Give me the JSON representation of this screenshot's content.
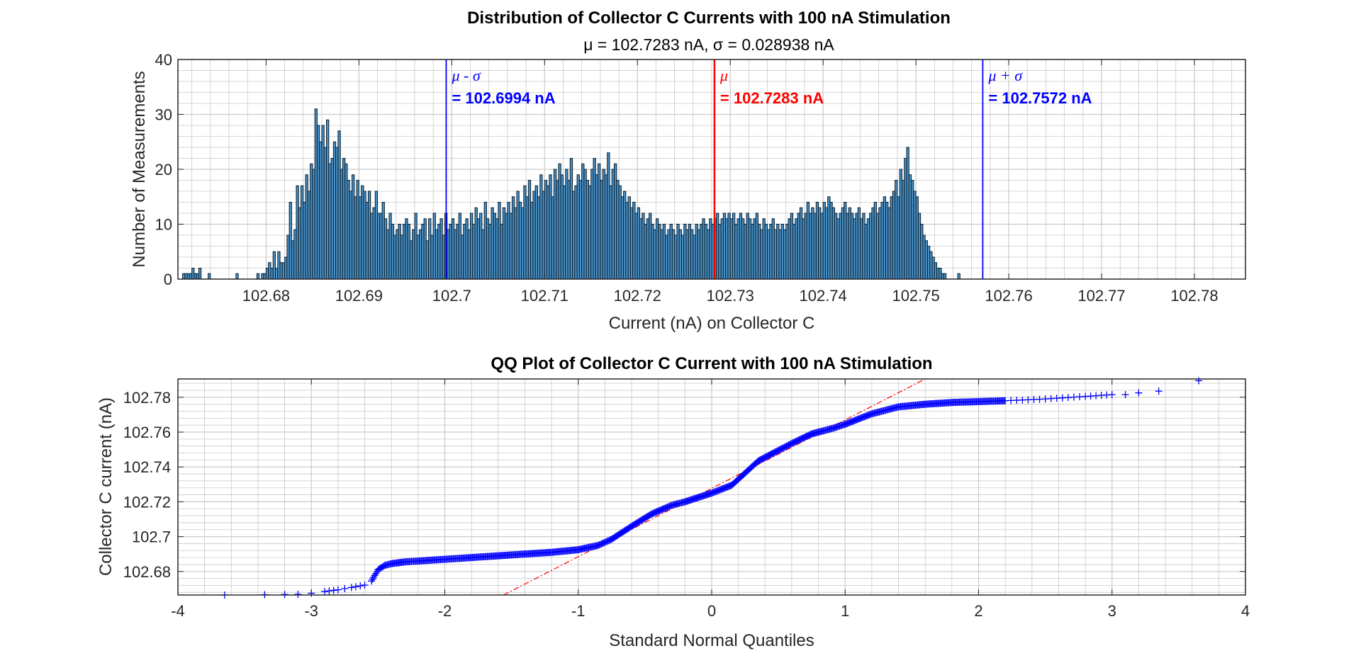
{
  "colors": {
    "bar_fill": "#4a90c4",
    "bar_edge": "#0b1f2e",
    "mean": "#ff0000",
    "sigma": "#0000ff",
    "qq_marker": "#0000ff",
    "ref_line": "#ff0000",
    "grid": "#c9c9c9",
    "axis": "#262626"
  },
  "chart_data": [
    {
      "type": "bar",
      "title": "Distribution of Collector C Currents with 100 nA Stimulation",
      "subtitle": "μ = 102.7283 nA, σ = 0.028938 nA",
      "xlabel": "Current (nA) on Collector C",
      "ylabel": "Number of Measurements",
      "xlim": [
        102.6705,
        102.7855
      ],
      "ylim": [
        0,
        40
      ],
      "xticks": [
        102.68,
        102.69,
        102.7,
        102.71,
        102.72,
        102.73,
        102.74,
        102.75,
        102.76,
        102.77,
        102.78
      ],
      "xtick_labels": [
        "102.68",
        "102.69",
        "102.7",
        "102.71",
        "102.72",
        "102.73",
        "102.74",
        "102.75",
        "102.76",
        "102.77",
        "102.78"
      ],
      "yticks": [
        0,
        10,
        20,
        30,
        40
      ],
      "ytick_labels": [
        "0",
        "10",
        "20",
        "30",
        "40"
      ],
      "grid": true,
      "bin_start": 102.671,
      "bin_width": 0.00025,
      "counts": [
        1,
        1,
        1,
        1,
        2,
        1,
        1,
        2,
        0,
        0,
        0,
        1,
        0,
        0,
        0,
        0,
        0,
        0,
        0,
        0,
        0,
        0,
        0,
        1,
        0,
        0,
        0,
        0,
        0,
        0,
        0,
        0,
        1,
        0,
        1,
        1,
        2,
        3,
        2,
        5,
        2,
        5,
        3,
        3,
        4,
        8,
        14,
        7,
        9,
        17,
        13,
        17,
        14,
        19,
        16,
        21,
        20,
        31,
        28,
        25,
        28,
        24,
        29,
        21,
        22,
        25,
        24,
        27,
        20,
        22,
        21,
        18,
        16,
        19,
        15,
        18,
        15,
        17,
        16,
        14,
        16,
        12,
        13,
        16,
        12,
        12,
        14,
        11,
        9,
        12,
        10,
        8,
        9,
        10,
        8,
        10,
        11,
        10,
        7,
        9,
        12,
        8,
        9,
        10,
        11,
        7,
        11,
        8,
        12,
        9,
        10,
        11,
        8,
        12,
        9,
        10,
        11,
        9,
        10,
        12,
        8,
        10,
        11,
        9,
        12,
        10,
        13,
        11,
        12,
        9,
        14,
        11,
        10,
        13,
        12,
        11,
        14,
        10,
        13,
        12,
        14,
        12,
        15,
        13,
        16,
        14,
        13,
        17,
        15,
        18,
        14,
        16,
        17,
        15,
        19,
        16,
        18,
        17,
        19,
        15,
        20,
        18,
        21,
        19,
        17,
        20,
        18,
        22,
        16,
        17,
        19,
        18,
        21,
        20,
        18,
        17,
        20,
        22,
        19,
        21,
        18,
        20,
        19,
        23,
        17,
        20,
        21,
        18,
        17,
        15,
        16,
        14,
        15,
        13,
        14,
        12,
        13,
        11,
        12,
        10,
        11,
        12,
        10,
        9,
        11,
        10,
        9,
        10,
        8,
        9,
        10,
        9,
        8,
        10,
        9,
        8,
        10,
        9,
        10,
        9,
        8,
        10,
        9,
        10,
        11,
        10,
        9,
        11,
        10,
        11,
        12,
        10,
        11,
        12,
        11,
        12,
        11,
        12,
        10,
        11,
        12,
        11,
        10,
        12,
        11,
        10,
        11,
        12,
        10,
        9,
        11,
        10,
        9,
        10,
        11,
        9,
        10,
        9,
        10,
        9,
        10,
        11,
        12,
        10,
        11,
        12,
        13,
        11,
        12,
        14,
        12,
        13,
        12,
        14,
        13,
        12,
        14,
        13,
        15,
        14,
        13,
        12,
        11,
        12,
        13,
        14,
        12,
        13,
        12,
        11,
        12,
        13,
        11,
        12,
        10,
        11,
        12,
        13,
        14,
        12,
        13,
        14,
        15,
        14,
        13,
        15,
        16,
        18,
        15,
        20,
        18,
        22,
        24,
        19,
        18,
        16,
        15,
        12,
        10,
        8,
        7,
        6,
        5,
        4,
        3,
        2,
        2,
        1,
        1,
        0,
        0,
        0,
        0,
        0,
        1,
        0,
        0,
        0,
        0,
        0,
        0
      ]
    },
    {
      "type": "scatter",
      "title": "QQ Plot of Collector C Current with 100 nA Stimulation",
      "xlabel": "Standard Normal Quantiles",
      "ylabel": "Collector C current (nA)",
      "xlim": [
        -4,
        4
      ],
      "ylim": [
        102.6665,
        102.7905
      ],
      "xticks": [
        -4,
        -3,
        -2,
        -1,
        0,
        1,
        2,
        3,
        4
      ],
      "xtick_labels": [
        "-4",
        "-3",
        "-2",
        "-1",
        "0",
        "1",
        "2",
        "3",
        "4"
      ],
      "yticks": [
        102.68,
        102.7,
        102.72,
        102.74,
        102.76,
        102.78
      ],
      "ytick_labels": [
        "102.68",
        "102.7",
        "102.72",
        "102.74",
        "102.76",
        "102.78"
      ],
      "grid": true,
      "quantile_curve": {
        "x": [
          -3.65,
          -3.35,
          -3.2,
          -3.1,
          -3.0,
          -2.9,
          -2.8,
          -2.7,
          -2.6,
          -2.55,
          -2.5,
          -2.45,
          -2.4,
          -2.3,
          -2.2,
          -2.0,
          -1.8,
          -1.5,
          -1.2,
          -1.0,
          -0.85,
          -0.75,
          -0.6,
          -0.45,
          -0.3,
          -0.2,
          -0.1,
          0.0,
          0.15,
          0.25,
          0.35,
          0.45,
          0.6,
          0.75,
          0.9,
          1.0,
          1.2,
          1.4,
          1.6,
          1.8,
          2.0,
          2.2,
          2.5,
          2.8,
          3.0,
          3.1,
          3.2,
          3.35,
          3.65
        ],
        "y": [
          102.6665,
          102.6667,
          102.6668,
          102.6669,
          102.6675,
          102.6685,
          102.6695,
          102.6708,
          102.6722,
          102.6745,
          102.681,
          102.6835,
          102.6845,
          102.6855,
          102.686,
          102.687,
          102.688,
          102.6895,
          102.691,
          102.6925,
          102.695,
          102.6985,
          102.706,
          102.713,
          102.718,
          102.72,
          102.7225,
          102.725,
          102.7295,
          102.7365,
          102.7435,
          102.7475,
          102.7535,
          102.759,
          102.762,
          102.7645,
          102.7705,
          102.7745,
          102.776,
          102.777,
          102.7775,
          102.778,
          102.779,
          102.7805,
          102.7815,
          102.7815,
          102.7825,
          102.7835,
          102.7895
        ]
      },
      "reference_line": {
        "x": [
          -1.56,
          1.6
        ],
        "y": [
          102.6665,
          102.7905
        ]
      }
    }
  ],
  "annotations": [
    {
      "symbol": "μ - σ",
      "value": "= 102.6994 nA",
      "x": 102.6994,
      "color": "sigma"
    },
    {
      "symbol": "μ",
      "value": "= 102.7283 nA",
      "x": 102.7283,
      "color": "mean"
    },
    {
      "symbol": "μ + σ",
      "value": "= 102.7572 nA",
      "x": 102.7572,
      "color": "sigma"
    }
  ]
}
